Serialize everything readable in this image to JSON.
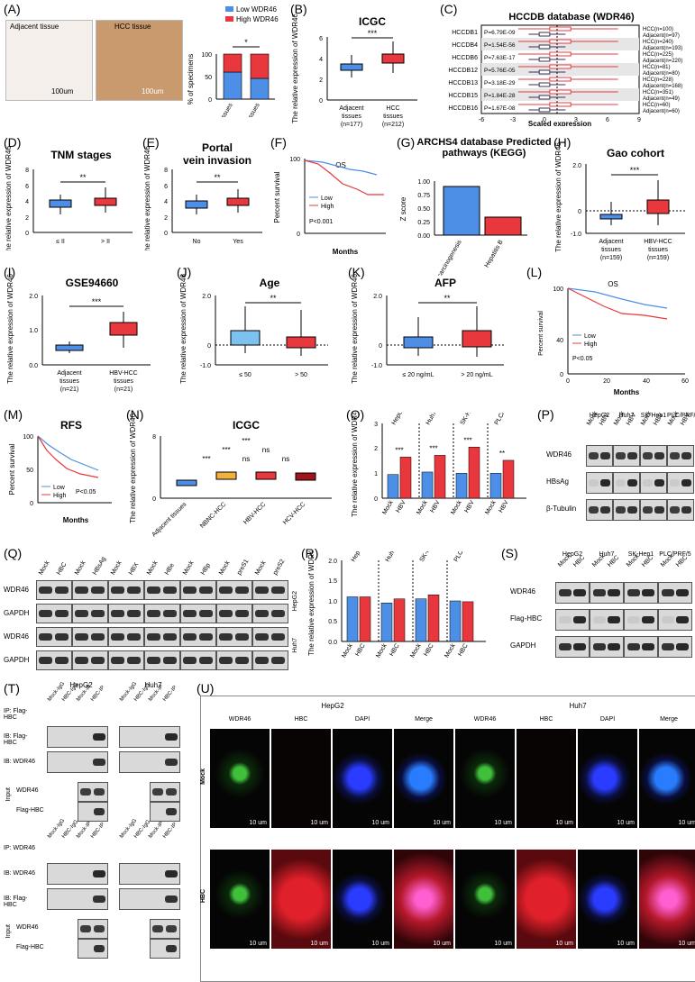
{
  "panels": {
    "A": {
      "letter": "(A)",
      "images": [
        {
          "label": "Adjacent tissue",
          "scale": "100um"
        },
        {
          "label": "HCC tissue",
          "scale": "100um"
        }
      ],
      "legend": [
        "Low WDR46",
        "High WDR46"
      ],
      "ylabel": "% of specimens",
      "yticks": [
        "0",
        "50",
        "100"
      ],
      "categories": [
        "Adjacent tissues",
        "HCC tissues"
      ],
      "sig": "*"
    },
    "B": {
      "letter": "(B)",
      "title": "ICGC",
      "ylabel": "The relative expression of WDR46",
      "yticks": [
        "0",
        "2",
        "4",
        "6"
      ],
      "categories": [
        "Adjacent tissues (n=177)",
        "HCC tissues (n=212)"
      ],
      "sig": "***"
    },
    "C": {
      "letter": "(C)",
      "title": "HCCDB database (WDR46)",
      "xlabel": "Scaled expression",
      "xticks": [
        "-6",
        "-3",
        "0",
        "3",
        "6",
        "9"
      ],
      "rows": [
        {
          "db": "HCCDB1",
          "p": "P=6.79E-09",
          "hcc": "HCC(n=100)",
          "adj": "Adjacent(n=97)"
        },
        {
          "db": "HCCDB4",
          "p": "P=1.54E-56",
          "hcc": "HCC(n=240)",
          "adj": "Adjacent(n=193)"
        },
        {
          "db": "HCCDB6",
          "p": "P=7.63E-17",
          "hcc": "HCC(n=225)",
          "adj": "Adjacent(n=220)"
        },
        {
          "db": "HCCDB12",
          "p": "P=5.76E-05",
          "hcc": "HCC(n=81)",
          "adj": "Adjacent(n=80)"
        },
        {
          "db": "HCCDB13",
          "p": "P=3.18E-29",
          "hcc": "HCC(n=228)",
          "adj": "Adjacent(n=168)"
        },
        {
          "db": "HCCDB15",
          "p": "P=1.84E-28",
          "hcc": "HCC(n=351)",
          "adj": "Adjacent(n=49)"
        },
        {
          "db": "HCCDB16",
          "p": "P=1.67E-08",
          "hcc": "HCC(n=60)",
          "adj": "Adjacent(n=60)"
        }
      ]
    },
    "D": {
      "letter": "(D)",
      "title": "TNM stages",
      "ylabel": "The relative expression of WDR46",
      "yticks": [
        "0",
        "2",
        "4",
        "6",
        "8"
      ],
      "categories": [
        "≤ II",
        "> II"
      ],
      "sig": "**"
    },
    "E": {
      "letter": "(E)",
      "title": "Portal vein invasion",
      "ylabel": "The relative expression of WDR46",
      "yticks": [
        "0",
        "2",
        "4",
        "6",
        "8"
      ],
      "categories": [
        "No",
        "Yes"
      ],
      "sig": "**"
    },
    "F": {
      "letter": "(F)",
      "title": "OS",
      "ylabel": "Percent survival",
      "xlabel": "Months",
      "yticks": [
        "0",
        "20",
        "40",
        "60",
        "80",
        "100"
      ],
      "xticks": [
        "0",
        "20",
        "40",
        "60",
        "80"
      ],
      "legend": [
        "Low",
        "High"
      ],
      "pvalue": "P<0.001"
    },
    "G": {
      "letter": "(G)",
      "title": "ARCHS4 database Predicted pathways (KEGG)",
      "ylabel": "Z score",
      "yticks": [
        "0.00",
        "0.25",
        "0.50",
        "0.75",
        "1.00"
      ],
      "categories": [
        "Viral carcinogenesis",
        "Hepatitis B"
      ]
    },
    "H": {
      "letter": "(H)",
      "title": "Gao cohort",
      "ylabel": "The relative expression of WDR46",
      "yticks": [
        "-1.0",
        "-0.5",
        "0",
        "0.5",
        "1.0",
        "1.5",
        "2.0"
      ],
      "categories": [
        "Adjacent tissues (n=159)",
        "HBV-HCC tissues (n=159)"
      ],
      "sig": "***"
    },
    "I": {
      "letter": "(I)",
      "title": "GSE94660",
      "ylabel": "The relative expression of WDR46",
      "yticks": [
        "0.0",
        "0.5",
        "1.0",
        "1.5",
        "2.0"
      ],
      "categories": [
        "Adjacent tissues (n=21)",
        "HBV-HCC tissues (n=21)"
      ],
      "sig": "***"
    },
    "J": {
      "letter": "(J)",
      "title": "Age",
      "ylabel": "The relative expression of WDR46",
      "yticks": [
        "-1.0",
        "-0.5",
        "0",
        "0.5",
        "1.0",
        "1.5",
        "2.0"
      ],
      "categories": [
        "≤ 50",
        "> 50"
      ],
      "sig": "**"
    },
    "K": {
      "letter": "(K)",
      "title": "AFP",
      "ylabel": "The relative expression of WDR46",
      "yticks": [
        "-1.0",
        "-0.5",
        "0",
        "0.5",
        "1.0",
        "1.5",
        "2.0"
      ],
      "categories": [
        "≤ 20 ng/mL",
        "> 20 ng/mL"
      ],
      "sig": "**"
    },
    "L": {
      "letter": "(L)",
      "title": "OS",
      "ylabel": "Percent survival",
      "xlabel": "Months",
      "yticks": [
        "0",
        "20",
        "40",
        "60",
        "80",
        "100"
      ],
      "xticks": [
        "0",
        "20",
        "40",
        "60"
      ],
      "legend": [
        "Low",
        "High"
      ],
      "pvalue": "P<0.05"
    },
    "M": {
      "letter": "(M)",
      "title": "RFS",
      "ylabel": "Percent survival",
      "xlabel": "Months",
      "yticks": [
        "0",
        "50",
        "100"
      ],
      "xticks": [
        "0",
        "20",
        "40",
        "60"
      ],
      "legend": [
        "Low",
        "High"
      ],
      "pvalue": "P<0.05"
    },
    "N": {
      "letter": "(N)",
      "title": "ICGC",
      "ylabel": "The relative expression of WDR46",
      "yticks": [
        "0",
        "2",
        "4",
        "6",
        "8"
      ],
      "categories": [
        "Adjacent tissues",
        "NBNC-HCC",
        "HBV-HCC",
        "HCV-HCC"
      ],
      "sigs": [
        "***",
        "***",
        "***",
        "ns",
        "ns",
        "ns"
      ]
    },
    "O": {
      "letter": "(O)",
      "ylabel": "The relative expression of WDR46",
      "yticks": [
        "0",
        "1",
        "2",
        "3"
      ],
      "lines": [
        "HepG2",
        "Huh7",
        "SK-Hep1",
        "PLC/PRF/5"
      ],
      "bars": [
        "Mock",
        "HBV"
      ],
      "sigs": [
        "***",
        "***",
        "***",
        "**"
      ]
    },
    "P": {
      "letter": "(P)",
      "lines": [
        "HepG2",
        "Huh7",
        "SK-Hep1",
        "PLC/PRF/5"
      ],
      "lanes": [
        "Mock",
        "HBV"
      ],
      "rows": [
        "WDR46",
        "HBsAg",
        "β-Tubulin"
      ]
    },
    "Q": {
      "letter": "(Q)",
      "lanes": [
        "Mock",
        "HBC",
        "Mock",
        "HBsAg",
        "Mock",
        "HBX",
        "Mock",
        "HBe",
        "Mock",
        "HBp",
        "Mock",
        "preS1",
        "Mock",
        "preS2"
      ],
      "rows": [
        "WDR46",
        "GAPDH",
        "WDR46",
        "GAPDH"
      ],
      "cells": [
        "HepG2",
        "Huh7"
      ]
    },
    "R": {
      "letter": "(R)",
      "ylabel": "The relative expression of WDR46",
      "yticks": [
        "0.0",
        "0.5",
        "1.0",
        "1.5",
        "2.0"
      ],
      "lines": [
        "HepG2",
        "Huh7",
        "SK-Hep1",
        "PLC/PRF/5"
      ],
      "bars": [
        "Mock",
        "HBC"
      ]
    },
    "S": {
      "letter": "(S)",
      "lines": [
        "HepG2",
        "Huh7",
        "SK-Hep1",
        "PLC/PRF/5"
      ],
      "lanes": [
        "Mock",
        "HBC"
      ],
      "rows": [
        "WDR46",
        "Flag-HBC",
        "GAPDH"
      ]
    },
    "T": {
      "letter": "(T)",
      "cells": [
        "HepG2",
        "Huh7"
      ],
      "lanes": [
        "Mock-IgG",
        "HBC-IgG",
        "Mock-IP",
        "HBC-IP"
      ],
      "top": {
        "ip": "IP: Flag-HBC",
        "ib1": "IB: Flag-HBC",
        "ib2": "IB: WDR46",
        "input": "Input",
        "in1": "WDR46",
        "in2": "Flag-HBC"
      },
      "bottom": {
        "ip": "IP: WDR46",
        "ib1": "IB: WDR46",
        "ib2": "IB: Flag-HBC",
        "input": "Input",
        "in1": "WDR46",
        "in2": "Flag-HBC"
      }
    },
    "U": {
      "letter": "(U)",
      "cells": [
        "HepG2",
        "Huh7"
      ],
      "channels": [
        "WDR46",
        "HBC",
        "DAPI",
        "Merge"
      ],
      "rows": [
        "Mock",
        "HBC"
      ],
      "scale": "10 um"
    }
  },
  "colors": {
    "blue": "#4d8fe6",
    "red": "#e8383d",
    "lightblue": "#7cc2f0",
    "orange": "#f3b03a",
    "darkred": "#a0151c",
    "stain_brown": "#b67a4a"
  },
  "chart_data": [
    {
      "type": "bar",
      "panel": "A",
      "categories": [
        "Adjacent tissues",
        "HCC tissues"
      ],
      "series": [
        {
          "name": "Low WDR46",
          "values": [
            60,
            45
          ]
        },
        {
          "name": "High WDR46",
          "values": [
            40,
            55
          ]
        }
      ],
      "ylabel": "% of specimens",
      "ylim": [
        0,
        100
      ]
    },
    {
      "type": "box",
      "panel": "B",
      "categories": [
        "Adjacent tissues (n=177)",
        "HCC tissues (n=212)"
      ],
      "boxes": [
        {
          "min": 2.3,
          "q1": 2.9,
          "median": 3.1,
          "q3": 3.4,
          "max": 4.4
        },
        {
          "min": 2.6,
          "q1": 3.5,
          "median": 3.9,
          "q3": 4.3,
          "max": 5.6
        }
      ],
      "ylim": [
        0,
        6
      ]
    },
    {
      "type": "bar",
      "panel": "G",
      "categories": [
        "Viral carcinogenesis",
        "Hepatitis B"
      ],
      "values": [
        0.9,
        0.34
      ],
      "ylim": [
        0,
        1
      ]
    },
    {
      "type": "bar",
      "panel": "O",
      "categories": [
        "HepG2",
        "Huh7",
        "SK-Hep1",
        "PLC/PRF/5"
      ],
      "series": [
        {
          "name": "Mock",
          "values": [
            0.95,
            1.05,
            1.0,
            1.0
          ]
        },
        {
          "name": "HBV",
          "values": [
            1.65,
            1.72,
            2.05,
            1.52
          ]
        }
      ],
      "ylim": [
        0,
        3
      ]
    },
    {
      "type": "bar",
      "panel": "R",
      "categories": [
        "HepG2",
        "Huh7",
        "SK-Hep1",
        "PLC/PRF/5"
      ],
      "series": [
        {
          "name": "Mock",
          "values": [
            1.1,
            0.95,
            1.05,
            1.0
          ]
        },
        {
          "name": "HBC",
          "values": [
            1.1,
            1.05,
            1.15,
            0.98
          ]
        }
      ],
      "ylim": [
        0,
        2
      ]
    }
  ]
}
